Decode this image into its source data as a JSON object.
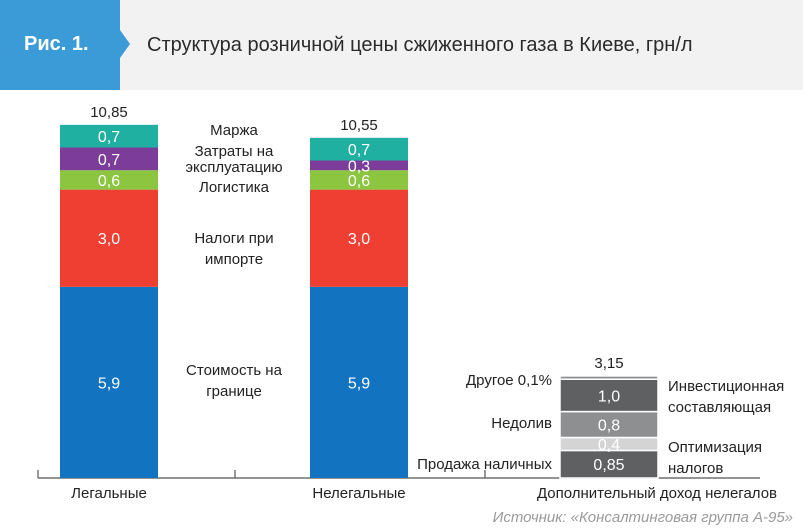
{
  "header": {
    "figure_label": "Рис. 1.",
    "title": "Структура розничной цены сжиженного газа в Киеве, грн/л"
  },
  "source": "Источник: «Консалтинговая группа А-95»",
  "colors": {
    "header_bg": "#f2f2f2",
    "accent": "#3b9bd6",
    "cost_at_border": "#1273c1",
    "import_taxes": "#ef3f32",
    "logistics": "#8cc540",
    "operating_costs": "#7b3c9a",
    "margin": "#1fb0a1",
    "gray_dark": "#5f6062",
    "gray_mid": "#8e8f91",
    "gray_light": "#d4d4d4"
  },
  "chart_data": {
    "type": "bar",
    "stacked": true,
    "categories": [
      "Легальные",
      "Нелегальные",
      "Дополнительный доход нелегалов"
    ],
    "totals": [
      "10,85",
      "10,55",
      "3,15"
    ],
    "ylim": [
      0,
      12
    ],
    "grid": false,
    "series_labels": {
      "margin": "Маржа",
      "operating_costs": [
        "Затраты на",
        "эксплуатацию"
      ],
      "logistics": "Логистика",
      "import_taxes": [
        "Налоги при",
        "импорте"
      ],
      "cost_at_border": [
        "Стоимость на",
        "границе"
      ]
    },
    "bars": [
      {
        "category": "Легальные",
        "segments": [
          {
            "key": "cost_at_border",
            "value": 5.9,
            "label": "5,9"
          },
          {
            "key": "import_taxes",
            "value": 3.0,
            "label": "3,0"
          },
          {
            "key": "logistics",
            "value": 0.6,
            "label": "0,6"
          },
          {
            "key": "operating_costs",
            "value": 0.7,
            "label": "0,7"
          },
          {
            "key": "margin",
            "value": 0.7,
            "label": "0,7"
          }
        ]
      },
      {
        "category": "Нелегальные",
        "segments": [
          {
            "key": "cost_at_border",
            "value": 5.9,
            "label": "5,9"
          },
          {
            "key": "import_taxes",
            "value": 3.0,
            "label": "3,0"
          },
          {
            "key": "logistics",
            "value": 0.6,
            "label": "0,6"
          },
          {
            "key": "operating_costs",
            "value": 0.3,
            "label": "0,3"
          },
          {
            "key": "margin",
            "value": 0.7,
            "label": "0,7"
          }
        ]
      },
      {
        "category": "Дополнительный доход нелегалов",
        "segments": [
          {
            "key": "cash_sales",
            "value": 0.85,
            "label": "0,85",
            "name": "Продажа наличных",
            "color": "gray_dark"
          },
          {
            "key": "tax_optimization",
            "value": 0.4,
            "label": "0,4",
            "name": "Оптимизация налогов",
            "color": "gray_light"
          },
          {
            "key": "underfill",
            "value": 0.8,
            "label": "0,8",
            "name": "Недолив",
            "color": "gray_mid"
          },
          {
            "key": "investment",
            "value": 1.0,
            "label": "1,0",
            "name": "Инвестиционная составляющая",
            "color": "gray_dark"
          },
          {
            "key": "other",
            "value": 0.1,
            "label": "",
            "name": "Другое 0,1%",
            "color": "gray_mid"
          }
        ]
      }
    ],
    "side_labels": {
      "left": [
        "Другое 0,1%",
        "Недолив",
        "Продажа наличных"
      ],
      "right": [
        [
          "Инвестиционная",
          "составляющая"
        ],
        [
          "Оптимизация",
          "налогов"
        ]
      ]
    }
  }
}
